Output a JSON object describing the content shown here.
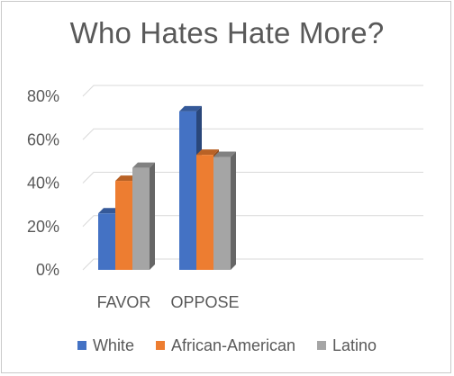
{
  "chart_data": {
    "type": "bar",
    "title": "Who Hates Hate More?",
    "categories": [
      "FAVOR",
      "OPPOSE"
    ],
    "series": [
      {
        "name": "White",
        "values": [
          26,
          73
        ],
        "color": "#4472C4"
      },
      {
        "name": "African-American",
        "values": [
          41,
          53
        ],
        "color": "#ED7D31"
      },
      {
        "name": "Latino",
        "values": [
          47,
          52
        ],
        "color": "#A5A5A5"
      }
    ],
    "ylim": [
      0,
      80
    ],
    "yticks": [
      0,
      20,
      40,
      60,
      80
    ],
    "ytick_labels": [
      "0%",
      "20%",
      "40%",
      "60%",
      "80%"
    ],
    "grid": true,
    "legend_position": "bottom",
    "style": "3d-clustered-column"
  }
}
